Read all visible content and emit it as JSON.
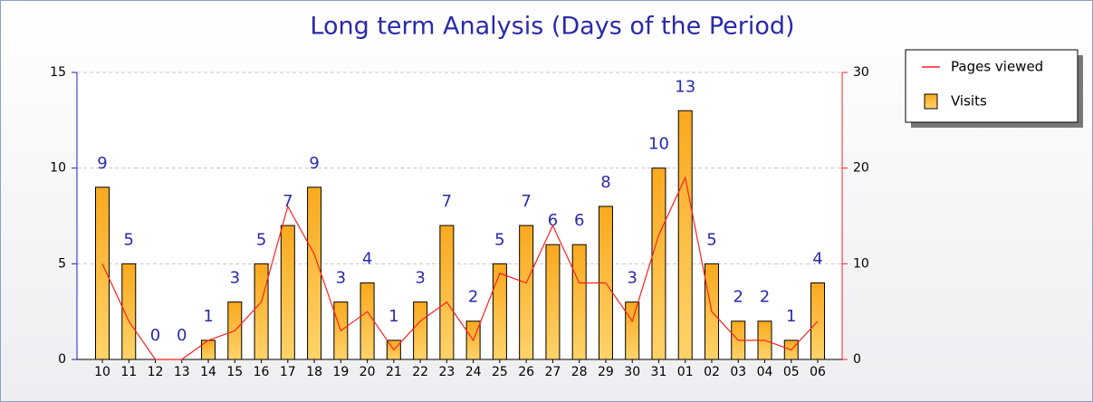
{
  "chart_data": {
    "type": "bar",
    "title": "Long term Analysis (Days of the Period)",
    "categories": [
      "10",
      "11",
      "12",
      "13",
      "14",
      "15",
      "16",
      "17",
      "18",
      "19",
      "20",
      "21",
      "22",
      "23",
      "24",
      "25",
      "26",
      "27",
      "28",
      "29",
      "30",
      "31",
      "01",
      "02",
      "03",
      "04",
      "05",
      "06"
    ],
    "series": [
      {
        "name": "Pages viewed",
        "color": "#ff2020",
        "axis": "y2",
        "type": "line",
        "values": [
          10,
          4,
          0,
          0,
          2,
          3,
          6,
          16,
          11,
          3,
          5,
          1,
          4,
          6,
          2,
          9,
          8,
          14,
          8,
          8,
          4,
          13,
          19,
          5,
          2,
          2,
          1,
          4
        ]
      },
      {
        "name": "Visits",
        "color": "#fdb833",
        "type": "bar",
        "values": [
          9,
          5,
          0,
          0,
          1,
          3,
          5,
          7,
          9,
          3,
          4,
          1,
          3,
          7,
          2,
          5,
          7,
          6,
          6,
          8,
          3,
          10,
          13,
          5,
          2,
          2,
          1,
          4
        ]
      }
    ],
    "ylim": [
      0,
      15
    ],
    "yticks": [
      0,
      5,
      10,
      15
    ],
    "y2lim": [
      0,
      30
    ],
    "y2ticks": [
      0,
      10,
      20,
      30
    ],
    "grid": true,
    "legend": "top-right"
  }
}
